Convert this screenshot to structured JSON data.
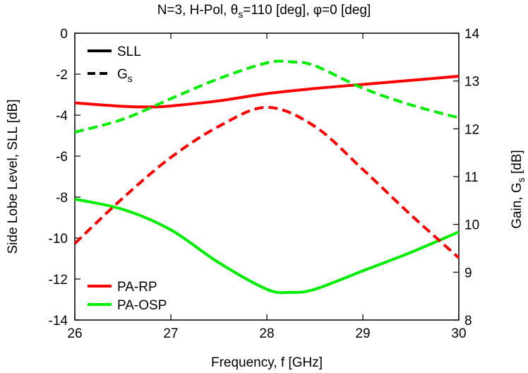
{
  "chart_data": {
    "type": "line",
    "title": {
      "prefix": "N=3, H-Pol, θ",
      "sub": "s",
      "suffix": "=110 [deg], φ=0 [deg]"
    },
    "xlabel": "Frequency, f [GHz]",
    "ylabel_left": "Side Lobe Level, SLL [dB]",
    "ylabel_right": {
      "prefix": "Gain, G",
      "sub": "s",
      "suffix": " [dB]"
    },
    "xlim": [
      26,
      30
    ],
    "ylim_left": [
      -14,
      0
    ],
    "ylim_right": [
      8,
      14
    ],
    "xticks": [
      26,
      27,
      28,
      29,
      30
    ],
    "yticks_left": [
      0,
      -2,
      -4,
      -6,
      -8,
      -10,
      -12,
      -14
    ],
    "yticks_right": [
      14,
      13,
      12,
      11,
      10,
      9,
      8
    ],
    "grid": false,
    "legend_style": {
      "position": "top-left",
      "entries": [
        {
          "label": "SLL",
          "sub": "",
          "dash": "solid"
        },
        {
          "label": "G",
          "sub": "s",
          "dash": "dashed"
        }
      ]
    },
    "legend_method": {
      "position": "bottom-left",
      "entries": [
        {
          "label": "PA-RP",
          "color": "#ff0000"
        },
        {
          "label": "PA-OSP",
          "color": "#00ee00"
        }
      ]
    },
    "series": [
      {
        "name": "PA-RP",
        "quantity": "SLL",
        "axis": "left",
        "style": "solid",
        "color": "#ff0000",
        "x": [
          26,
          26.5,
          26.8,
          27,
          27.5,
          28,
          28.5,
          29,
          29.5,
          30
        ],
        "y": [
          -3.4,
          -3.57,
          -3.6,
          -3.55,
          -3.3,
          -2.95,
          -2.7,
          -2.5,
          -2.3,
          -2.1
        ]
      },
      {
        "name": "PA-OSP",
        "quantity": "SLL",
        "axis": "left",
        "style": "solid",
        "color": "#00ee00",
        "x": [
          26,
          26.5,
          27,
          27.5,
          28,
          28.25,
          28.5,
          29,
          29.5,
          30
        ],
        "y": [
          -8.1,
          -8.6,
          -9.6,
          -11.2,
          -12.5,
          -12.65,
          -12.5,
          -11.6,
          -10.7,
          -9.7
        ]
      },
      {
        "name": "PA-RP",
        "quantity": "Gs",
        "axis": "right",
        "style": "dashed",
        "color": "#ff0000",
        "x": [
          26,
          26.5,
          27,
          27.5,
          28,
          28.5,
          29,
          29.5,
          30
        ],
        "y": [
          9.6,
          10.55,
          11.4,
          12.05,
          12.45,
          12.05,
          11.15,
          10.2,
          9.3
        ]
      },
      {
        "name": "PA-OSP",
        "quantity": "Gs",
        "axis": "right",
        "style": "dashed",
        "color": "#00ee00",
        "x": [
          26,
          26.5,
          27,
          27.5,
          28,
          28.25,
          28.5,
          29,
          29.5,
          30
        ],
        "y": [
          11.93,
          12.2,
          12.63,
          13.05,
          13.38,
          13.4,
          13.32,
          12.85,
          12.5,
          12.23
        ]
      }
    ]
  }
}
